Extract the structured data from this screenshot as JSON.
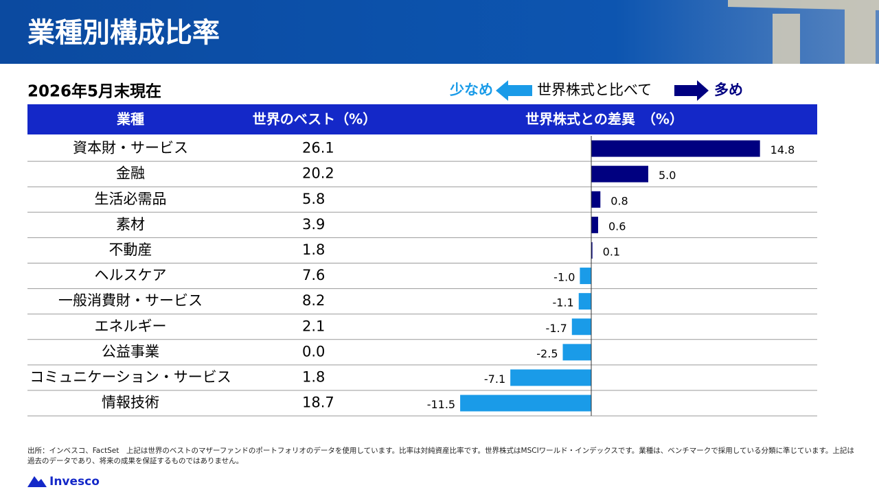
{
  "header": {
    "title": "業種別構成比率",
    "brand": "Invesco"
  },
  "date": "2026年5月末現在",
  "legend": {
    "less": "少なめ",
    "middle": "世界株式と比べて",
    "more": "多め"
  },
  "table": {
    "columns": [
      "業種",
      "世界のベスト（%）",
      "世界株式との差異　（%）"
    ],
    "rows": [
      {
        "sector": "資本財・サービス",
        "weight": "26.1",
        "diff": 14.8,
        "diff_label": "14.8"
      },
      {
        "sector": "金融",
        "weight": "20.2",
        "diff": 5.0,
        "diff_label": "5.0"
      },
      {
        "sector": "生活必需品",
        "weight": "5.8",
        "diff": 0.8,
        "diff_label": "0.8"
      },
      {
        "sector": "素材",
        "weight": "3.9",
        "diff": 0.6,
        "diff_label": "0.6"
      },
      {
        "sector": "不動産",
        "weight": "1.8",
        "diff": 0.1,
        "diff_label": "0.1"
      },
      {
        "sector": "ヘルスケア",
        "weight": "7.6",
        "diff": -1.0,
        "diff_label": "-1.0"
      },
      {
        "sector": "一般消費財・サービス",
        "weight": "8.2",
        "diff": -1.1,
        "diff_label": "-1.1"
      },
      {
        "sector": "エネルギー",
        "weight": "2.1",
        "diff": -1.7,
        "diff_label": "-1.7"
      },
      {
        "sector": "公益事業",
        "weight": "0.0",
        "diff": -2.5,
        "diff_label": "-2.5"
      },
      {
        "sector": "コミュニケーション・サービス",
        "weight": "1.8",
        "diff": -7.1,
        "diff_label": "-7.1"
      },
      {
        "sector": "情報技術",
        "weight": "18.7",
        "diff": -11.5,
        "diff_label": "-11.5"
      }
    ],
    "positive_color": "#000080",
    "negative_color": "#1a9be8"
  },
  "footnote": "出所：インベスコ、FactSet　上記は世界のベストのマザーファンドのポートフォリオのデータを使用しています。比率は対純資産比率です。世界株式はMSCIワールド・インデックスです。業種は、ベンチマークで採用している分類に準じています。上記は過去のデータであり、将来の成果を保証するものではありません。"
}
